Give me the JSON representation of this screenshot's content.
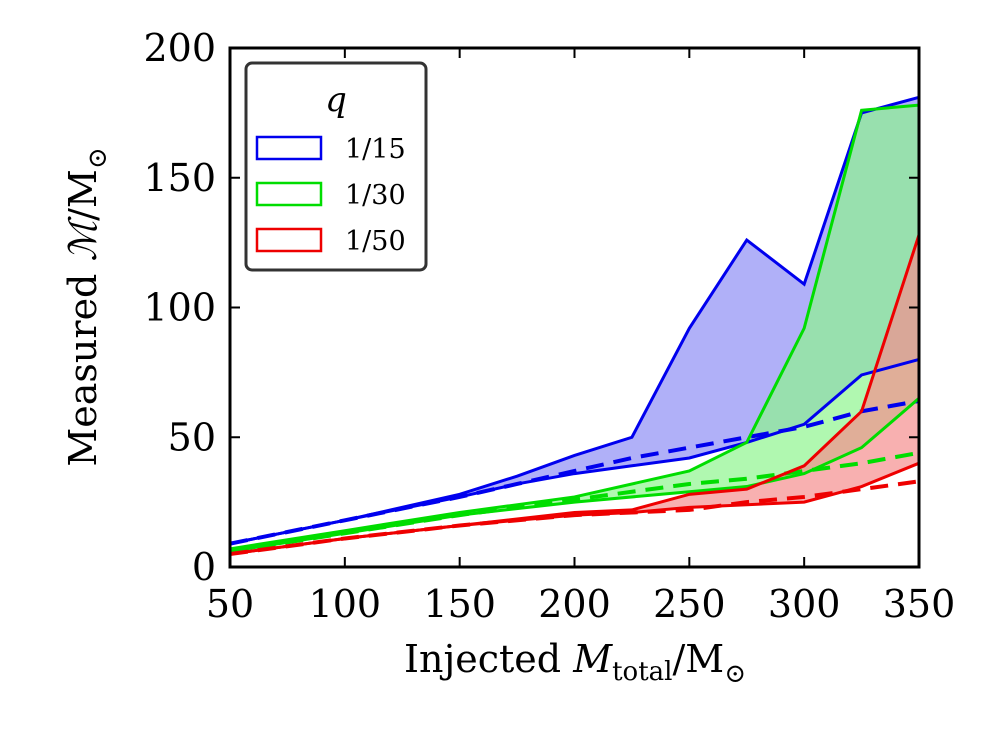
{
  "chart_data": {
    "type": "area",
    "xlabel": {
      "prefix": "Injected ",
      "var": "M",
      "sub": "total",
      "unit": "/M",
      "unit_sub": "⊙"
    },
    "ylabel": {
      "prefix": "Measured ",
      "var": "ℳ",
      "unit": "/M",
      "unit_sub": "⊙"
    },
    "xlim": [
      50,
      350
    ],
    "ylim": [
      0,
      200
    ],
    "xticks": [
      50,
      100,
      150,
      200,
      250,
      300,
      350
    ],
    "yticks": [
      0,
      50,
      100,
      150,
      200
    ],
    "grid": false,
    "legend": {
      "title": "q",
      "placement": "top-left"
    },
    "series": [
      {
        "name": "1/15",
        "color": "#0000ee",
        "fill": "#8f8ff5",
        "x": [
          50,
          100,
          150,
          175,
          200,
          225,
          250,
          275,
          300,
          325,
          350
        ],
        "upper": [
          9,
          18,
          28,
          35,
          43,
          50,
          92,
          126,
          109,
          175,
          181
        ],
        "lower": [
          9,
          18,
          27,
          32,
          36,
          39,
          42,
          48,
          55,
          74,
          80
        ],
        "median": [
          9,
          18,
          27,
          32,
          37,
          42,
          46,
          50,
          54,
          60,
          64
        ]
      },
      {
        "name": "1/30",
        "color": "#00dd00",
        "fill": "#8ff58f",
        "x": [
          50,
          100,
          150,
          200,
          250,
          275,
          300,
          325,
          350
        ],
        "upper": [
          7,
          14,
          21,
          27,
          37,
          48,
          92,
          176,
          178
        ],
        "lower": [
          6,
          13,
          20,
          25,
          29,
          31,
          36,
          46,
          65
        ],
        "median": [
          6,
          13,
          20,
          26,
          32,
          34,
          37,
          40,
          44
        ]
      },
      {
        "name": "1/50",
        "color": "#ee0000",
        "fill": "#f58f8f",
        "x": [
          50,
          100,
          150,
          200,
          225,
          250,
          275,
          300,
          325,
          350
        ],
        "upper": [
          5,
          11,
          16,
          21,
          22,
          28,
          30,
          39,
          60,
          128
        ],
        "lower": [
          5,
          11,
          16,
          20,
          21,
          23,
          24,
          25,
          31,
          40
        ],
        "median": [
          5,
          11,
          16,
          20,
          21,
          22,
          25,
          27,
          30,
          33
        ]
      }
    ]
  }
}
